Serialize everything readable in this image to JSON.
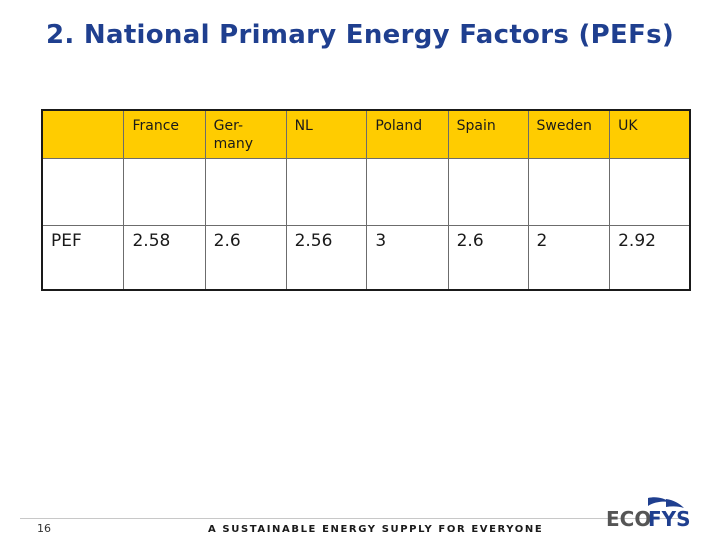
{
  "title": "2. National Primary Energy Factors (PEFs)",
  "table": {
    "headers": [
      "",
      "France",
      "Ger-\nmany",
      "NL",
      "Poland",
      "Spain",
      "Sweden",
      "UK"
    ],
    "row_label": "PEF",
    "values": [
      "2.58",
      "2.6",
      "2.56",
      "3",
      "2.6",
      "2",
      "2.92"
    ]
  },
  "footer": {
    "page_number": "16",
    "tagline": "A SUSTAINABLE ENERGY SUPPLY FOR EVERYONE",
    "logo_text_eco": "ECO",
    "logo_text_fys": "FYS"
  },
  "colors": {
    "title": "#1f3f8f",
    "header_fill": "#ffcc00",
    "logo_blue": "#1f3f8f",
    "logo_gray": "#555555"
  }
}
